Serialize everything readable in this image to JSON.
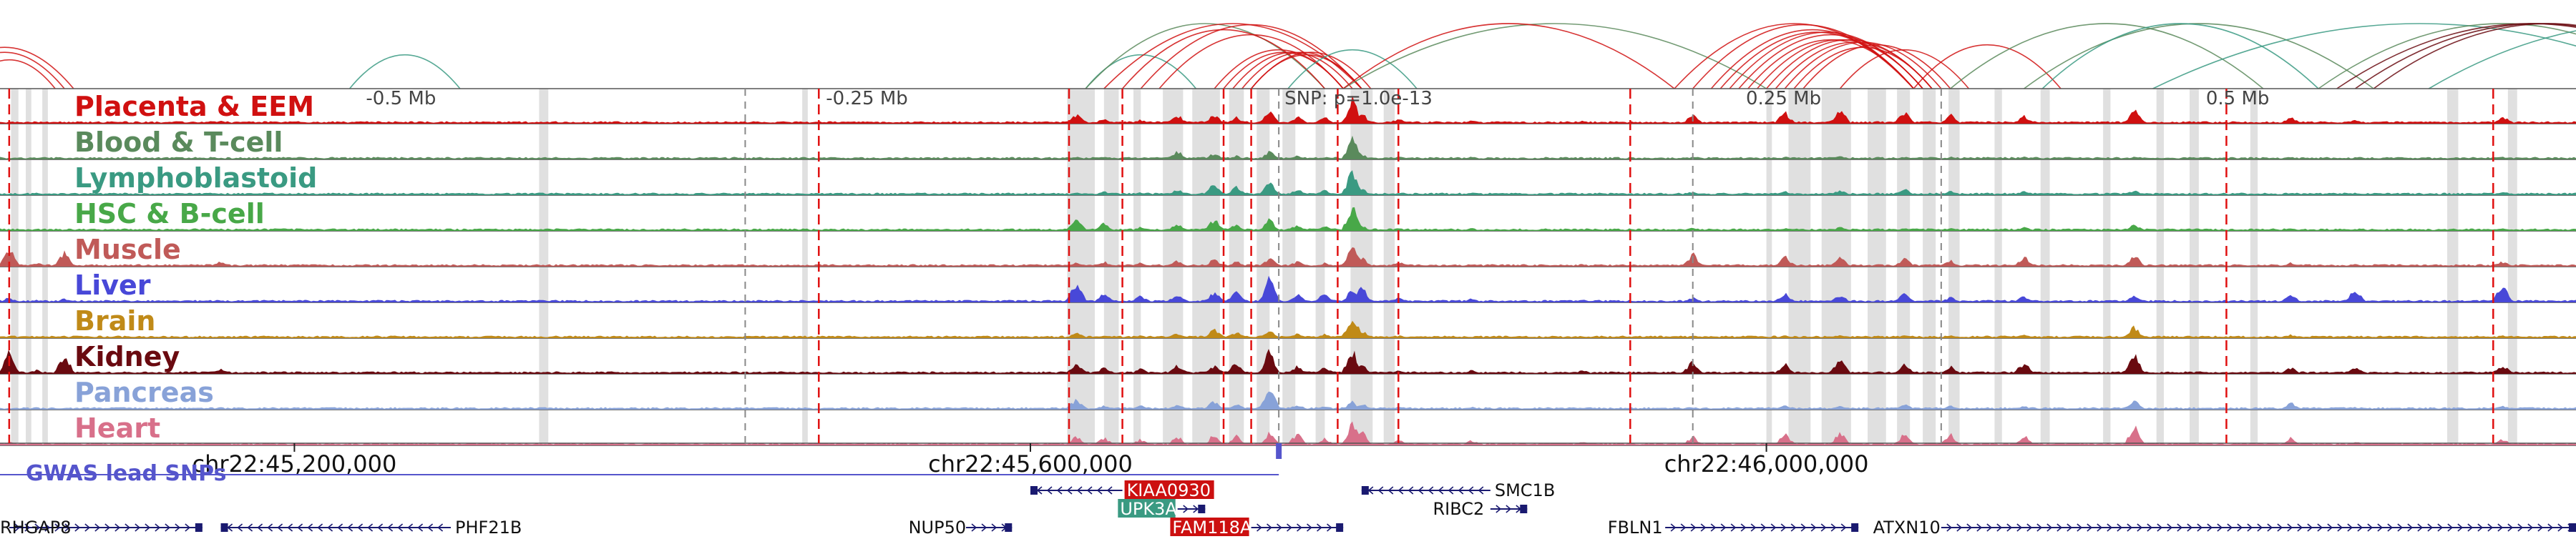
{
  "chart_data": {
    "type": "area",
    "title": "",
    "xlabel": "",
    "ylabel": "",
    "genomic_axis": {
      "chromosome": "chr22",
      "xlim": [
        45040000,
        46440000
      ],
      "coordinate_ticks": [
        {
          "position": 45200000,
          "label": "chr22:45,200,000"
        },
        {
          "position": 45600000,
          "label": "chr22:45,600,000"
        },
        {
          "position": 46000000,
          "label": "chr22:46,000,000"
        }
      ]
    },
    "snp": {
      "label": "SNP: p=1.0e-13",
      "position": 45735000
    },
    "distance_ticks": [
      {
        "label": "-0.5 Mb",
        "position": 45235000
      },
      {
        "label": "-0.25 Mb",
        "position": 45485000
      },
      {
        "label": "0.25 Mb",
        "position": 45985000
      },
      {
        "label": "0.5 Mb",
        "position": 46235000
      }
    ],
    "tracks": [
      {
        "name": "Placenta & EEM",
        "color": "#d01010",
        "ymax": 1.0
      },
      {
        "name": "Blood & T-cell",
        "color": "#5a8a5c",
        "ymax": 1.0
      },
      {
        "name": "Lymphoblastoid",
        "color": "#3a9a82",
        "ymax": 1.0
      },
      {
        "name": "HSC & B-cell",
        "color": "#48a848",
        "ymax": 1.0
      },
      {
        "name": "Muscle",
        "color": "#c05a58",
        "ymax": 1.0
      },
      {
        "name": "Liver",
        "color": "#4848d8",
        "ymax": 1.0
      },
      {
        "name": "Brain",
        "color": "#c08a18",
        "ymax": 1.0
      },
      {
        "name": "Kidney",
        "color": "#6a0a10",
        "ymax": 1.0
      },
      {
        "name": "Pancreas",
        "color": "#88a2d8",
        "ymax": 1.0
      },
      {
        "name": "Heart",
        "color": "#d8708a",
        "ymax": 1.0
      }
    ],
    "peaks": {
      "x": [
        45045000,
        45060000,
        45075000,
        45160000,
        45330000,
        45480000,
        45560000,
        45625000,
        45640000,
        45660000,
        45680000,
        45700000,
        45712000,
        45730000,
        45745000,
        45760000,
        45775000,
        45780000,
        45800000,
        45840000,
        45900000,
        45960000,
        46010000,
        46040000,
        46075000,
        46100000,
        46140000,
        46200000,
        46285000,
        46320000,
        46400000
      ],
      "values": {
        "Placenta & EEM": [
          0.05,
          0.05,
          0.05,
          0.1,
          0.05,
          0.05,
          0.05,
          0.35,
          0.2,
          0.15,
          0.35,
          0.35,
          0.25,
          0.45,
          0.3,
          0.25,
          0.95,
          0.4,
          0.2,
          0.15,
          0.1,
          0.35,
          0.45,
          0.55,
          0.45,
          0.35,
          0.3,
          0.55,
          0.25,
          0.15,
          0.3
        ],
        "Blood & T-cell": [
          0.05,
          0.05,
          0.05,
          0.05,
          0.05,
          0.05,
          0.05,
          0.1,
          0.1,
          0.05,
          0.35,
          0.25,
          0.15,
          0.3,
          0.15,
          0.1,
          0.85,
          0.2,
          0.1,
          0.1,
          0.05,
          0.1,
          0.1,
          0.15,
          0.1,
          0.1,
          0.1,
          0.1,
          0.05,
          0.05,
          0.1
        ],
        "Lymphoblastoid": [
          0.05,
          0.05,
          0.05,
          0.05,
          0.05,
          0.05,
          0.05,
          0.1,
          0.15,
          0.1,
          0.25,
          0.45,
          0.35,
          0.5,
          0.25,
          0.2,
          0.95,
          0.25,
          0.1,
          0.1,
          0.05,
          0.15,
          0.15,
          0.2,
          0.25,
          0.15,
          0.15,
          0.2,
          0.1,
          0.1,
          0.15
        ],
        "HSC & B-cell": [
          0.05,
          0.05,
          0.05,
          0.05,
          0.05,
          0.05,
          0.05,
          0.45,
          0.3,
          0.15,
          0.3,
          0.45,
          0.25,
          0.45,
          0.25,
          0.2,
          0.95,
          0.2,
          0.1,
          0.1,
          0.05,
          0.15,
          0.1,
          0.15,
          0.1,
          0.1,
          0.15,
          0.25,
          0.1,
          0.05,
          0.1
        ],
        "Muscle": [
          0.75,
          0.15,
          0.55,
          0.2,
          0.05,
          0.05,
          0.05,
          0.15,
          0.2,
          0.15,
          0.25,
          0.3,
          0.2,
          0.35,
          0.2,
          0.15,
          0.85,
          0.35,
          0.2,
          0.1,
          0.1,
          0.5,
          0.4,
          0.35,
          0.35,
          0.25,
          0.4,
          0.5,
          0.15,
          0.1,
          0.2
        ],
        "Liver": [
          0.2,
          0.1,
          0.15,
          0.1,
          0.05,
          0.05,
          0.05,
          0.8,
          0.35,
          0.25,
          0.35,
          0.4,
          0.5,
          0.95,
          0.35,
          0.35,
          0.5,
          0.6,
          0.2,
          0.15,
          0.1,
          0.2,
          0.35,
          0.3,
          0.35,
          0.2,
          0.25,
          0.3,
          0.35,
          0.55,
          0.65
        ],
        "Brain": [
          0.05,
          0.05,
          0.05,
          0.05,
          0.05,
          0.05,
          0.05,
          0.25,
          0.1,
          0.1,
          0.2,
          0.35,
          0.25,
          0.3,
          0.2,
          0.15,
          0.9,
          0.3,
          0.1,
          0.05,
          0.05,
          0.1,
          0.1,
          0.15,
          0.1,
          0.1,
          0.15,
          0.45,
          0.15,
          0.05,
          0.1
        ],
        "Kidney": [
          0.9,
          0.15,
          0.75,
          0.2,
          0.05,
          0.05,
          0.05,
          0.45,
          0.25,
          0.2,
          0.35,
          0.3,
          0.45,
          0.9,
          0.3,
          0.25,
          0.95,
          0.35,
          0.15,
          0.15,
          0.15,
          0.5,
          0.4,
          0.55,
          0.35,
          0.3,
          0.45,
          0.75,
          0.25,
          0.25,
          0.35
        ],
        "Pancreas": [
          0.05,
          0.05,
          0.05,
          0.05,
          0.05,
          0.05,
          0.05,
          0.45,
          0.15,
          0.15,
          0.25,
          0.35,
          0.25,
          0.85,
          0.2,
          0.15,
          0.3,
          0.25,
          0.1,
          0.1,
          0.05,
          0.1,
          0.15,
          0.15,
          0.25,
          0.15,
          0.15,
          0.35,
          0.3,
          0.1,
          0.15
        ],
        "Heart": [
          0.15,
          0.05,
          0.1,
          0.1,
          0.05,
          0.05,
          0.05,
          0.35,
          0.3,
          0.25,
          0.35,
          0.45,
          0.35,
          0.5,
          0.45,
          0.3,
          0.85,
          0.55,
          0.25,
          0.2,
          0.15,
          0.35,
          0.45,
          0.5,
          0.5,
          0.45,
          0.4,
          0.85,
          0.3,
          0.15,
          0.25
        ]
      }
    },
    "highlight_regions": [
      [
        45046000,
        45050000
      ],
      [
        45054000,
        45057000
      ],
      [
        45063000,
        45066000
      ],
      [
        45333000,
        45338000
      ],
      [
        45476000,
        45479000
      ],
      [
        45620000,
        45635000
      ],
      [
        45640000,
        45648000
      ],
      [
        45656000,
        45660000
      ],
      [
        45672000,
        45683000
      ],
      [
        45688000,
        45703000
      ],
      [
        45708000,
        45716000
      ],
      [
        45723000,
        45730000
      ],
      [
        45737000,
        45744000
      ],
      [
        45755000,
        45760000
      ],
      [
        45774000,
        45786000
      ],
      [
        45792000,
        45798000
      ],
      [
        46000000,
        46003000
      ],
      [
        46012000,
        46024000
      ],
      [
        46030000,
        46046000
      ],
      [
        46055000,
        46065000
      ],
      [
        46071000,
        46078000
      ],
      [
        46085000,
        46092000
      ],
      [
        46099000,
        46105000
      ],
      [
        46124000,
        46128000
      ],
      [
        46149000,
        46154000
      ],
      [
        46183000,
        46187000
      ],
      [
        46212000,
        46216000
      ],
      [
        46230000,
        46235000
      ],
      [
        46263000,
        46267000
      ],
      [
        46370000,
        46376000
      ],
      [
        46403000,
        46408000
      ]
    ],
    "red_dashed_lines": [
      45045000,
      45485000,
      45621000,
      45650000,
      45705000,
      45720000,
      45767000,
      45800000,
      45926000,
      46250000,
      46395000
    ],
    "gray_dashed_lines": [
      45445000,
      45735000,
      45960000,
      46095000
    ],
    "loops": [
      {
        "start": 45005000,
        "end": 45080000,
        "color": "#d01010"
      },
      {
        "start": 45010000,
        "end": 45075000,
        "color": "#d01010"
      },
      {
        "start": 45020000,
        "end": 45070000,
        "color": "#d01010"
      },
      {
        "start": 45230000,
        "end": 45290000,
        "color": "#3a9a82"
      },
      {
        "start": 45630000,
        "end": 45690000,
        "color": "#3a9a82"
      },
      {
        "start": 45630000,
        "end": 45760000,
        "color": "#5a8a5c"
      },
      {
        "start": 45640000,
        "end": 45780000,
        "color": "#d01010"
      },
      {
        "start": 45650000,
        "end": 45760000,
        "color": "#d01010"
      },
      {
        "start": 45660000,
        "end": 45780000,
        "color": "#d01010"
      },
      {
        "start": 45670000,
        "end": 45770000,
        "color": "#d01010"
      },
      {
        "start": 45700000,
        "end": 45770000,
        "color": "#d01010"
      },
      {
        "start": 45705000,
        "end": 45770000,
        "color": "#d01010"
      },
      {
        "start": 45710000,
        "end": 45775000,
        "color": "#d01010"
      },
      {
        "start": 45715000,
        "end": 45780000,
        "color": "#d01010"
      },
      {
        "start": 45720000,
        "end": 45780000,
        "color": "#d01010"
      },
      {
        "start": 45720000,
        "end": 45785000,
        "color": "#d01010"
      },
      {
        "start": 45740000,
        "end": 45810000,
        "color": "#3a9a82"
      },
      {
        "start": 45770000,
        "end": 46000000,
        "color": "#5a8a5c"
      },
      {
        "start": 45770000,
        "end": 45950000,
        "color": "#d01010"
      },
      {
        "start": 45950000,
        "end": 46080000,
        "color": "#d01010"
      },
      {
        "start": 45960000,
        "end": 46080000,
        "color": "#d01010"
      },
      {
        "start": 45970000,
        "end": 46080000,
        "color": "#d01010"
      },
      {
        "start": 45975000,
        "end": 46080000,
        "color": "#d01010"
      },
      {
        "start": 45980000,
        "end": 46085000,
        "color": "#d01010"
      },
      {
        "start": 45985000,
        "end": 46085000,
        "color": "#d01010"
      },
      {
        "start": 45990000,
        "end": 46080000,
        "color": "#d01010"
      },
      {
        "start": 45995000,
        "end": 46085000,
        "color": "#d01010"
      },
      {
        "start": 46000000,
        "end": 46090000,
        "color": "#d01010"
      },
      {
        "start": 46005000,
        "end": 46090000,
        "color": "#d01010"
      },
      {
        "start": 46010000,
        "end": 46095000,
        "color": "#d01010"
      },
      {
        "start": 46015000,
        "end": 46090000,
        "color": "#d01010"
      },
      {
        "start": 46020000,
        "end": 46100000,
        "color": "#d01010"
      },
      {
        "start": 46040000,
        "end": 46110000,
        "color": "#d01010"
      },
      {
        "start": 46080000,
        "end": 46160000,
        "color": "#d01010"
      },
      {
        "start": 46100000,
        "end": 46270000,
        "color": "#5a8a5c"
      },
      {
        "start": 46140000,
        "end": 46330000,
        "color": "#5a8a5c"
      },
      {
        "start": 46150000,
        "end": 46300000,
        "color": "#3a9a82"
      },
      {
        "start": 46210000,
        "end": 46500000,
        "color": "#3a9a82"
      },
      {
        "start": 46300000,
        "end": 46500000,
        "color": "#5a8a5c"
      },
      {
        "start": 46310000,
        "end": 46520000,
        "color": "#6a0a10"
      },
      {
        "start": 46320000,
        "end": 46520000,
        "color": "#6a0a10"
      },
      {
        "start": 46330000,
        "end": 46520000,
        "color": "#6a0a10"
      },
      {
        "start": 46360000,
        "end": 46600000,
        "color": "#3a9a82"
      }
    ],
    "gwas": {
      "label": "GWAS lead SNPs",
      "color": "#5555cc",
      "line": [
        45040000,
        45735000
      ],
      "snp_position": 45735000
    },
    "genes": [
      {
        "name": "RHGAP8",
        "start": 45045000,
        "end": 45150000,
        "strand": "+",
        "row": 2,
        "color": "#1a1a70",
        "label_side": "left",
        "highlight": ""
      },
      {
        "name": "PHF21B",
        "start": 45160000,
        "end": 45285000,
        "strand": "-",
        "row": 2,
        "color": "#1a1a70",
        "label_side": "right",
        "highlight": ""
      },
      {
        "name": "NUP50",
        "start": 45565000,
        "end": 45590000,
        "strand": "+",
        "row": 2,
        "color": "#1a1a70",
        "label_side": "left",
        "highlight": ""
      },
      {
        "name": "KIAA0930",
        "start": 45600000,
        "end": 45650000,
        "strand": "-",
        "row": 0,
        "color": "#1a1a70",
        "label_side": "right",
        "highlight": "#cc1010"
      },
      {
        "name": "UPK3A",
        "start": 45680000,
        "end": 45695000,
        "strand": "+",
        "row": 1,
        "color": "#1a1a70",
        "label_side": "left",
        "highlight": "#3a9a82"
      },
      {
        "name": "FAM118A",
        "start": 45720000,
        "end": 45770000,
        "strand": "+",
        "row": 2,
        "color": "#1a1a70",
        "label_side": "left",
        "highlight": "#cc1010"
      },
      {
        "name": "SMC1B",
        "start": 45780000,
        "end": 45850000,
        "strand": "-",
        "row": 0,
        "color": "#1a1a70",
        "label_side": "right",
        "highlight": ""
      },
      {
        "name": "RIBC2",
        "start": 45850000,
        "end": 45870000,
        "strand": "+",
        "row": 1,
        "color": "#1a1a70",
        "label_side": "left",
        "highlight": ""
      },
      {
        "name": "FBLN1",
        "start": 45945000,
        "end": 46050000,
        "strand": "+",
        "row": 2,
        "color": "#1a1a70",
        "label_side": "left",
        "highlight": ""
      },
      {
        "name": "ATXN10",
        "start": 46095000,
        "end": 46440000,
        "strand": "+",
        "row": 2,
        "color": "#1a1a70",
        "label_side": "left",
        "highlight": ""
      }
    ],
    "legend": "none",
    "grid": false
  }
}
